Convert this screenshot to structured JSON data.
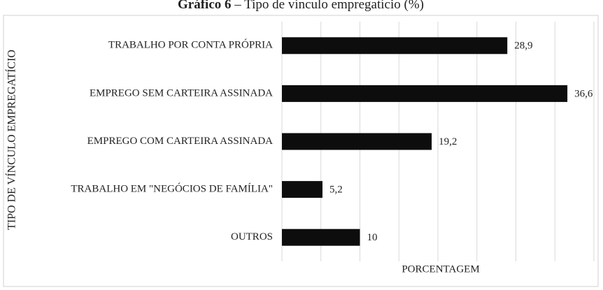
{
  "chart_data": {
    "type": "barh",
    "title_bold": "Gráfico 6",
    "title": " – Tipo de vínculo empregatício (%)",
    "xlabel": "PORCENTAGEM",
    "ylabel": "TIPO DE VÍNCULO EMPREGATÍCIO",
    "categories": [
      "TRABALHO POR CONTA PRÓPRIA",
      "EMPREGO SEM CARTEIRA ASSINADA",
      "EMPREGO COM CARTEIRA ASSINADA",
      "TRABALHO EM \"NEGÓCIOS DE FAMÍLIA\"",
      "OUTROS"
    ],
    "values": [
      28.9,
      36.6,
      19.2,
      5.2,
      10
    ],
    "value_labels": [
      "28,9",
      "36,6",
      "19,2",
      "5,2",
      "10"
    ],
    "color": "#0d0d0d",
    "xlim": [
      0,
      40
    ],
    "xticks": [
      0,
      5,
      10,
      15,
      20,
      25,
      30,
      35,
      40
    ],
    "grid": true
  }
}
